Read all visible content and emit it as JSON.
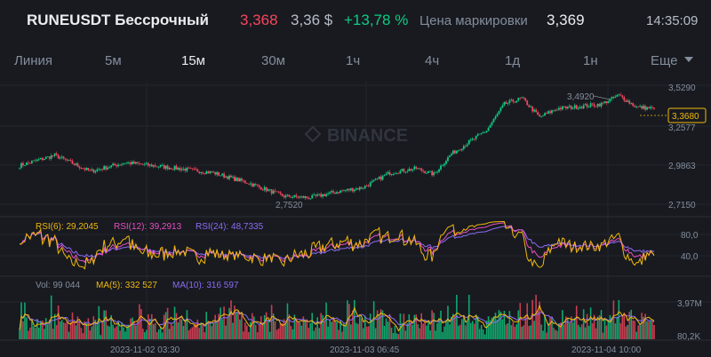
{
  "header": {
    "symbol": "RUNEUSDT Бессрочный",
    "last_price": "3,368",
    "usd_price": "3,36 $",
    "change": "+13,78 %",
    "mark_label": "Цена маркировки",
    "mark_price": "3,369",
    "time": "14:35:09"
  },
  "intervals": [
    {
      "label": "Линия",
      "active": false
    },
    {
      "label": "5м",
      "active": false
    },
    {
      "label": "15м",
      "active": true
    },
    {
      "label": "30м",
      "active": false
    },
    {
      "label": "1ч",
      "active": false
    },
    {
      "label": "4ч",
      "active": false
    },
    {
      "label": "1д",
      "active": false
    },
    {
      "label": "1н",
      "active": false
    },
    {
      "label": "Еще",
      "active": false
    }
  ],
  "watermark": "BINANCE",
  "price_axis": [
    "3,5290",
    "3,2577",
    "2,9863",
    "2,7150"
  ],
  "current_price_tag": "3,3680",
  "high_label": "3,4920",
  "low_label": "2,7520",
  "rsi": {
    "rsi6": "RSI(6): 29,2045",
    "rsi12": "RSI(12): 39,2913",
    "rsi24": "RSI(24): 48,7335",
    "axis": [
      "80,0",
      "40,0"
    ]
  },
  "volume": {
    "vol": "Vol: 99 044",
    "ma5": "MA(5): 332 527",
    "ma10": "MA(10): 316 597",
    "axis": [
      "3,97M",
      "80,2K"
    ]
  },
  "time_axis": [
    "2023-11-02 03:30",
    "2023-11-03 06:45",
    "2023-11-04 10:00"
  ],
  "colors": {
    "up": "#0ecb81",
    "down": "#f6465d",
    "rsi6": "#f0b90b",
    "rsi12": "#e84ec2",
    "rsi24": "#8d6bf5",
    "bg": "#181a20"
  },
  "chart_data": {
    "type": "candlestick",
    "price_anchors": [
      [
        0,
        2.98
      ],
      [
        20,
        3.05
      ],
      [
        40,
        2.94
      ],
      [
        60,
        3.0
      ],
      [
        90,
        2.96
      ],
      [
        110,
        2.93
      ],
      [
        130,
        2.86
      ],
      [
        150,
        2.77
      ],
      [
        165,
        2.76
      ],
      [
        180,
        2.8
      ],
      [
        195,
        2.83
      ],
      [
        210,
        2.93
      ],
      [
        225,
        2.96
      ],
      [
        235,
        2.92
      ],
      [
        245,
        3.06
      ],
      [
        255,
        3.14
      ],
      [
        265,
        3.22
      ],
      [
        275,
        3.4
      ],
      [
        285,
        3.44
      ],
      [
        295,
        3.31
      ],
      [
        305,
        3.37
      ],
      [
        315,
        3.38
      ],
      [
        330,
        3.4
      ],
      [
        340,
        3.46
      ],
      [
        350,
        3.38
      ],
      [
        360,
        3.37
      ]
    ],
    "high": 3.492,
    "low": 2.752,
    "last": 3.368
  }
}
